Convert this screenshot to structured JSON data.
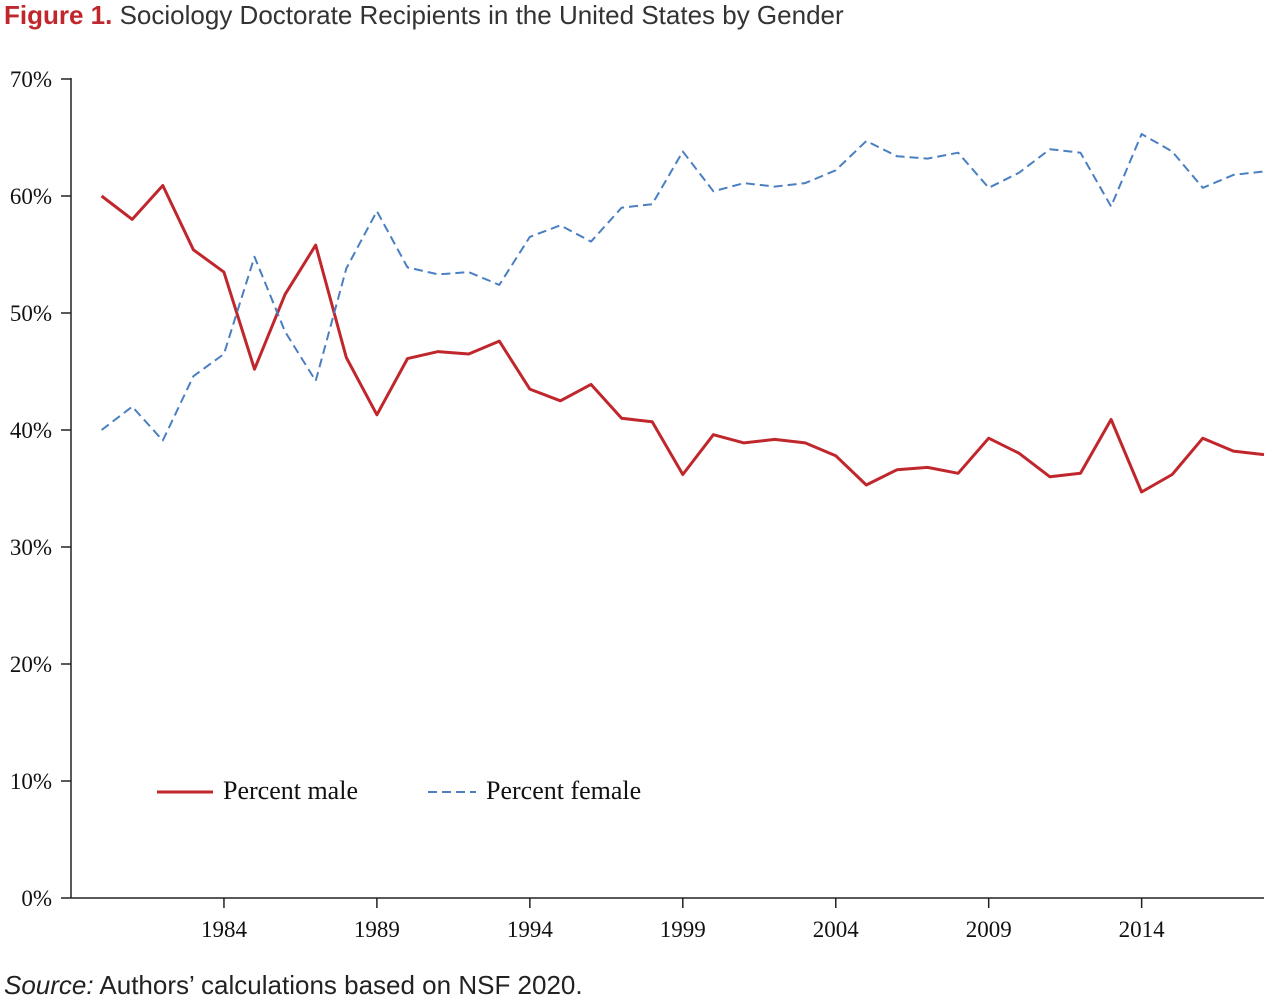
{
  "figure": {
    "label": "Figure 1.",
    "title": "Sociology Doctorate Recipients in the United States by Gender",
    "source_label": "Source:",
    "source_text": "Authors’ calculations based on NSF 2020."
  },
  "chart_data": {
    "type": "line",
    "title": "Sociology Doctorate Recipients in the United States by Gender",
    "xlabel": "",
    "ylabel": "",
    "x": [
      1980,
      1981,
      1982,
      1983,
      1984,
      1985,
      1986,
      1987,
      1988,
      1989,
      1990,
      1991,
      1992,
      1993,
      1994,
      1995,
      1996,
      1997,
      1998,
      1999,
      2000,
      2001,
      2002,
      2003,
      2004,
      2005,
      2006,
      2007,
      2008,
      2009,
      2010,
      2011,
      2012,
      2013,
      2014,
      2015,
      2016,
      2017,
      2018
    ],
    "x_ticks": [
      1984,
      1989,
      1994,
      1999,
      2004,
      2009,
      2014
    ],
    "x_tick_labels": [
      "1984",
      "1989",
      "1994",
      "1999",
      "2004",
      "2009",
      "2014"
    ],
    "xlim": [
      1979,
      2018
    ],
    "ylim": [
      0,
      70
    ],
    "y_ticks": [
      0,
      10,
      20,
      30,
      40,
      50,
      60,
      70
    ],
    "y_tick_labels": [
      "0%",
      "10%",
      "20%",
      "30%",
      "40%",
      "50%",
      "60%",
      "70%"
    ],
    "grid": false,
    "legend_position": "lower-left",
    "series": [
      {
        "name": "Percent male",
        "color": "#c0272d",
        "style": "solid",
        "values": [
          60.0,
          58.0,
          60.9,
          55.4,
          53.5,
          45.2,
          51.6,
          55.8,
          46.2,
          41.3,
          46.1,
          46.7,
          46.5,
          47.6,
          43.5,
          42.5,
          43.9,
          41.0,
          40.7,
          36.2,
          39.6,
          38.9,
          39.2,
          38.9,
          37.8,
          35.3,
          36.6,
          36.8,
          36.3,
          39.3,
          38.0,
          36.0,
          36.3,
          40.9,
          34.7,
          36.2,
          39.3,
          38.2,
          37.9
        ]
      },
      {
        "name": "Percent female",
        "color": "#4a7fc1",
        "style": "dashed",
        "values": [
          40.0,
          42.0,
          39.1,
          44.6,
          46.5,
          54.8,
          48.4,
          44.2,
          53.8,
          58.7,
          53.9,
          53.3,
          53.5,
          52.4,
          56.5,
          57.5,
          56.1,
          59.0,
          59.3,
          63.8,
          60.4,
          61.1,
          60.8,
          61.1,
          62.2,
          64.7,
          63.4,
          63.2,
          63.7,
          60.7,
          62.0,
          64.0,
          63.7,
          59.1,
          65.3,
          63.8,
          60.7,
          61.8,
          62.1
        ]
      }
    ]
  }
}
